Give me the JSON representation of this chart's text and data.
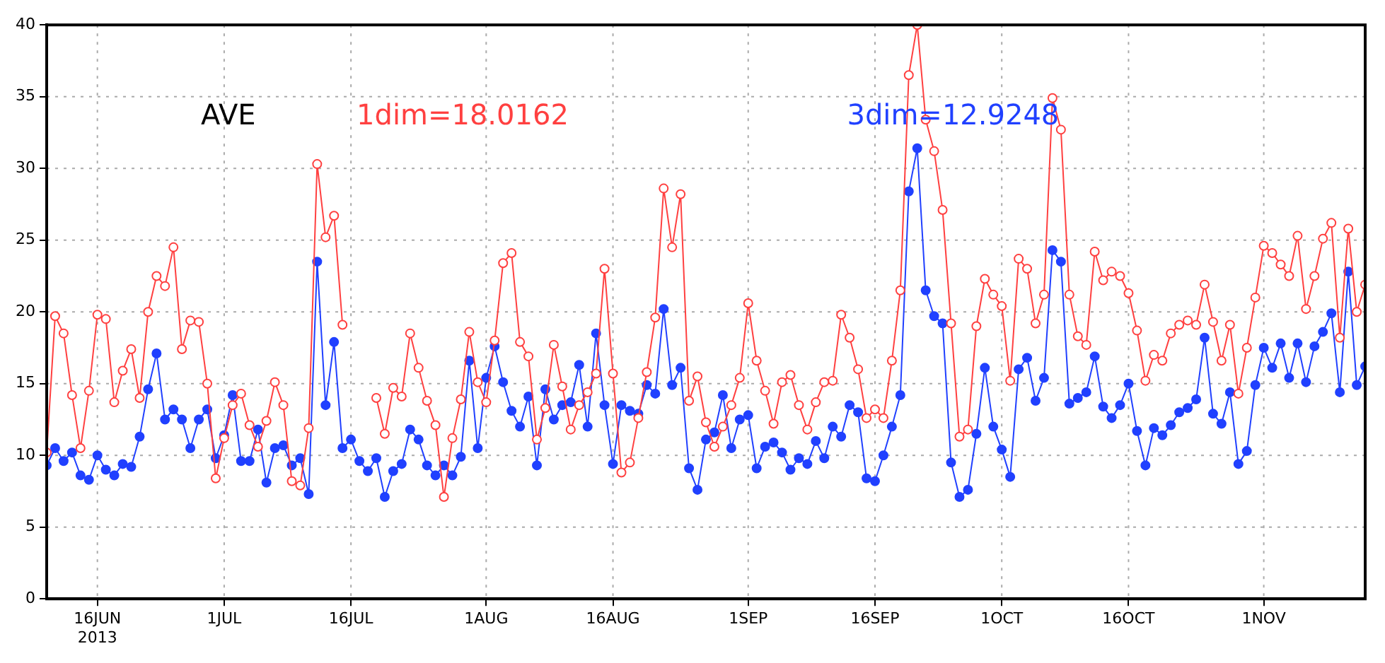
{
  "chart_data": {
    "type": "line",
    "x": [
      "2013-06-10",
      "2013-06-11",
      "2013-06-12",
      "2013-06-13",
      "2013-06-14",
      "2013-06-15",
      "2013-06-16",
      "2013-06-17",
      "2013-06-18",
      "2013-06-19",
      "2013-06-20",
      "2013-06-21",
      "2013-06-22",
      "2013-06-23",
      "2013-06-24",
      "2013-06-25",
      "2013-06-26",
      "2013-06-27",
      "2013-06-28",
      "2013-06-29",
      "2013-06-30",
      "2013-07-01",
      "2013-07-02",
      "2013-07-03",
      "2013-07-04",
      "2013-07-05",
      "2013-07-06",
      "2013-07-07",
      "2013-07-08",
      "2013-07-09",
      "2013-07-10",
      "2013-07-11",
      "2013-07-12",
      "2013-07-13",
      "2013-07-14",
      "2013-07-15",
      "2013-07-16",
      "2013-07-17",
      "2013-07-18",
      "2013-07-19",
      "2013-07-20",
      "2013-07-21",
      "2013-07-22",
      "2013-07-23",
      "2013-07-24",
      "2013-07-25",
      "2013-07-26",
      "2013-07-27",
      "2013-07-28",
      "2013-07-29",
      "2013-07-30",
      "2013-07-31",
      "2013-08-01",
      "2013-08-02",
      "2013-08-03",
      "2013-08-04",
      "2013-08-05",
      "2013-08-06",
      "2013-08-07",
      "2013-08-08",
      "2013-08-09",
      "2013-08-10",
      "2013-08-11",
      "2013-08-12",
      "2013-08-13",
      "2013-08-14",
      "2013-08-15",
      "2013-08-16",
      "2013-08-17",
      "2013-08-18",
      "2013-08-19",
      "2013-08-20",
      "2013-08-21",
      "2013-08-22",
      "2013-08-23",
      "2013-08-24",
      "2013-08-25",
      "2013-08-26",
      "2013-08-27",
      "2013-08-28",
      "2013-08-29",
      "2013-08-30",
      "2013-08-31",
      "2013-09-01",
      "2013-09-02",
      "2013-09-03",
      "2013-09-04",
      "2013-09-05",
      "2013-09-06",
      "2013-09-07",
      "2013-09-08",
      "2013-09-09",
      "2013-09-10",
      "2013-09-11",
      "2013-09-12",
      "2013-09-13",
      "2013-09-14",
      "2013-09-15",
      "2013-09-16",
      "2013-09-17",
      "2013-09-18",
      "2013-09-19",
      "2013-09-20",
      "2013-09-21",
      "2013-09-22",
      "2013-09-23",
      "2013-09-24",
      "2013-09-25",
      "2013-09-26",
      "2013-09-27",
      "2013-09-28",
      "2013-09-29",
      "2013-09-30",
      "2013-10-01",
      "2013-10-02",
      "2013-10-03",
      "2013-10-04",
      "2013-10-05",
      "2013-10-06",
      "2013-10-07",
      "2013-10-08",
      "2013-10-09",
      "2013-10-10",
      "2013-10-11",
      "2013-10-12",
      "2013-10-13",
      "2013-10-14",
      "2013-10-15",
      "2013-10-16",
      "2013-10-17",
      "2013-10-18",
      "2013-10-19",
      "2013-10-20",
      "2013-10-21",
      "2013-10-22",
      "2013-10-23",
      "2013-10-24",
      "2013-10-25",
      "2013-10-26",
      "2013-10-27",
      "2013-10-28",
      "2013-10-29",
      "2013-10-30",
      "2013-10-31",
      "2013-11-01",
      "2013-11-02",
      "2013-11-03",
      "2013-11-04",
      "2013-11-05",
      "2013-11-06",
      "2013-11-07",
      "2013-11-08",
      "2013-11-09",
      "2013-11-10",
      "2013-11-11",
      "2013-11-12",
      "2013-11-13"
    ],
    "series": [
      {
        "color": "#ff4040",
        "values": [
          10.2,
          19.7,
          18.5,
          14.2,
          10.5,
          14.5,
          19.8,
          19.5,
          13.7,
          15.9,
          17.4,
          14,
          20,
          22.5,
          21.8,
          24.5,
          17.4,
          19.4,
          19.3,
          15,
          8.4,
          11.2,
          13.5,
          14.3,
          12.1,
          10.6,
          12.4,
          15.1,
          13.5,
          8.2,
          7.9,
          11.9,
          30.3,
          25.2,
          26.7,
          19.1,
          null,
          null,
          null,
          14,
          11.5,
          14.7,
          14.1,
          18.5,
          16.1,
          13.8,
          12.1,
          7.1,
          11.2,
          13.9,
          18.6,
          15.1,
          13.7,
          18,
          23.4,
          24.1,
          17.9,
          16.9,
          11.1,
          13.3,
          17.7,
          14.8,
          11.8,
          13.5,
          14.4,
          15.7,
          23,
          15.7,
          8.8,
          9.5,
          12.6,
          15.8,
          19.6,
          28.6,
          24.5,
          28.2,
          13.8,
          15.5,
          12.3,
          10.6,
          12,
          13.5,
          15.4,
          20.6,
          16.6,
          14.5,
          12.2,
          15.1,
          15.6,
          13.5,
          11.8,
          13.7,
          15.1,
          15.2,
          19.8,
          18.2,
          16,
          12.6,
          13.2,
          12.6,
          16.6,
          21.5,
          36.5,
          40,
          33.4,
          31.2,
          27.1,
          19.2,
          11.3,
          11.8,
          19,
          22.3,
          21.2,
          20.4,
          15.2,
          23.7,
          23,
          19.2,
          21.2,
          34.9,
          32.7,
          21.2,
          18.3,
          17.7,
          24.2,
          22.2,
          22.8,
          22.5,
          21.3,
          18.7,
          15.2,
          17,
          16.6,
          18.5,
          19.1,
          19.4,
          19.1,
          21.9,
          19.3,
          16.6,
          19.1,
          14.3,
          17.5,
          21,
          24.6,
          24.1,
          23.3,
          22.5,
          25.3,
          20.2,
          22.5,
          25.1,
          26.2,
          18.2,
          25.8,
          20,
          21.9
        ]
      },
      {
        "color": "#2040ff",
        "values": [
          9.3,
          10.5,
          9.6,
          10.2,
          8.6,
          8.3,
          10,
          9,
          8.6,
          9.4,
          9.2,
          11.3,
          14.6,
          17.1,
          12.5,
          13.2,
          12.5,
          10.5,
          12.5,
          13.2,
          9.8,
          11.4,
          14.2,
          9.6,
          9.6,
          11.8,
          8.1,
          10.5,
          10.7,
          9.3,
          9.8,
          7.3,
          23.5,
          13.5,
          17.9,
          10.5,
          11.1,
          9.6,
          8.9,
          9.8,
          7.1,
          8.9,
          9.4,
          11.8,
          11.1,
          9.3,
          8.6,
          9.3,
          8.6,
          9.9,
          16.6,
          10.5,
          15.4,
          17.6,
          15.1,
          13.1,
          12,
          14.1,
          9.3,
          14.6,
          12.5,
          13.5,
          13.7,
          16.3,
          12,
          18.5,
          13.5,
          9.4,
          13.5,
          13.1,
          12.9,
          14.9,
          14.3,
          20.2,
          14.9,
          16.1,
          9.1,
          7.6,
          11.1,
          11.6,
          14.2,
          10.5,
          12.5,
          12.8,
          9.1,
          10.6,
          10.9,
          10.2,
          9,
          9.8,
          9.4,
          11,
          9.8,
          12,
          11.3,
          13.5,
          13,
          8.4,
          8.2,
          10,
          12,
          14.2,
          28.4,
          31.4,
          21.5,
          19.7,
          19.2,
          9.5,
          7.1,
          7.6,
          11.5,
          16.1,
          12,
          10.4,
          8.5,
          16,
          16.8,
          13.8,
          15.4,
          24.3,
          23.5,
          13.6,
          14,
          14.4,
          16.9,
          13.4,
          12.6,
          13.5,
          15,
          11.7,
          9.3,
          11.9,
          11.4,
          12.1,
          13,
          13.3,
          13.9,
          18.2,
          12.9,
          12.2,
          14.4,
          9.4,
          10.3,
          14.9,
          17.5,
          16.1,
          17.8,
          15.4,
          17.8,
          15.1,
          17.6,
          18.6,
          19.9,
          14.4,
          22.8,
          14.9,
          16.2
        ]
      }
    ],
    "annotations": [
      "AVE",
      "1dim=18.0162",
      "3dim=12.9248"
    ],
    "xlim": [
      "2013-06-10",
      "2013-11-13"
    ],
    "xticks": [
      {
        "value": "2013-06-16",
        "label": "16JUN\n2013"
      },
      {
        "value": "2013-07-01",
        "label": "1JUL"
      },
      {
        "value": "2013-07-16",
        "label": "16JUL"
      },
      {
        "value": "2013-08-01",
        "label": "1AUG"
      },
      {
        "value": "2013-08-16",
        "label": "16AUG"
      },
      {
        "value": "2013-09-01",
        "label": "1SEP"
      },
      {
        "value": "2013-09-16",
        "label": "16SEP"
      },
      {
        "value": "2013-10-01",
        "label": "1OCT"
      },
      {
        "value": "2013-10-16",
        "label": "16OCT"
      },
      {
        "value": "2013-11-01",
        "label": "1NOV"
      }
    ],
    "ylim": [
      0,
      40
    ],
    "yticks": [
      0,
      5,
      10,
      15,
      20,
      25,
      30,
      35,
      40
    ],
    "grid": true,
    "marker": "circle",
    "line_style": "solid",
    "legend": false
  }
}
